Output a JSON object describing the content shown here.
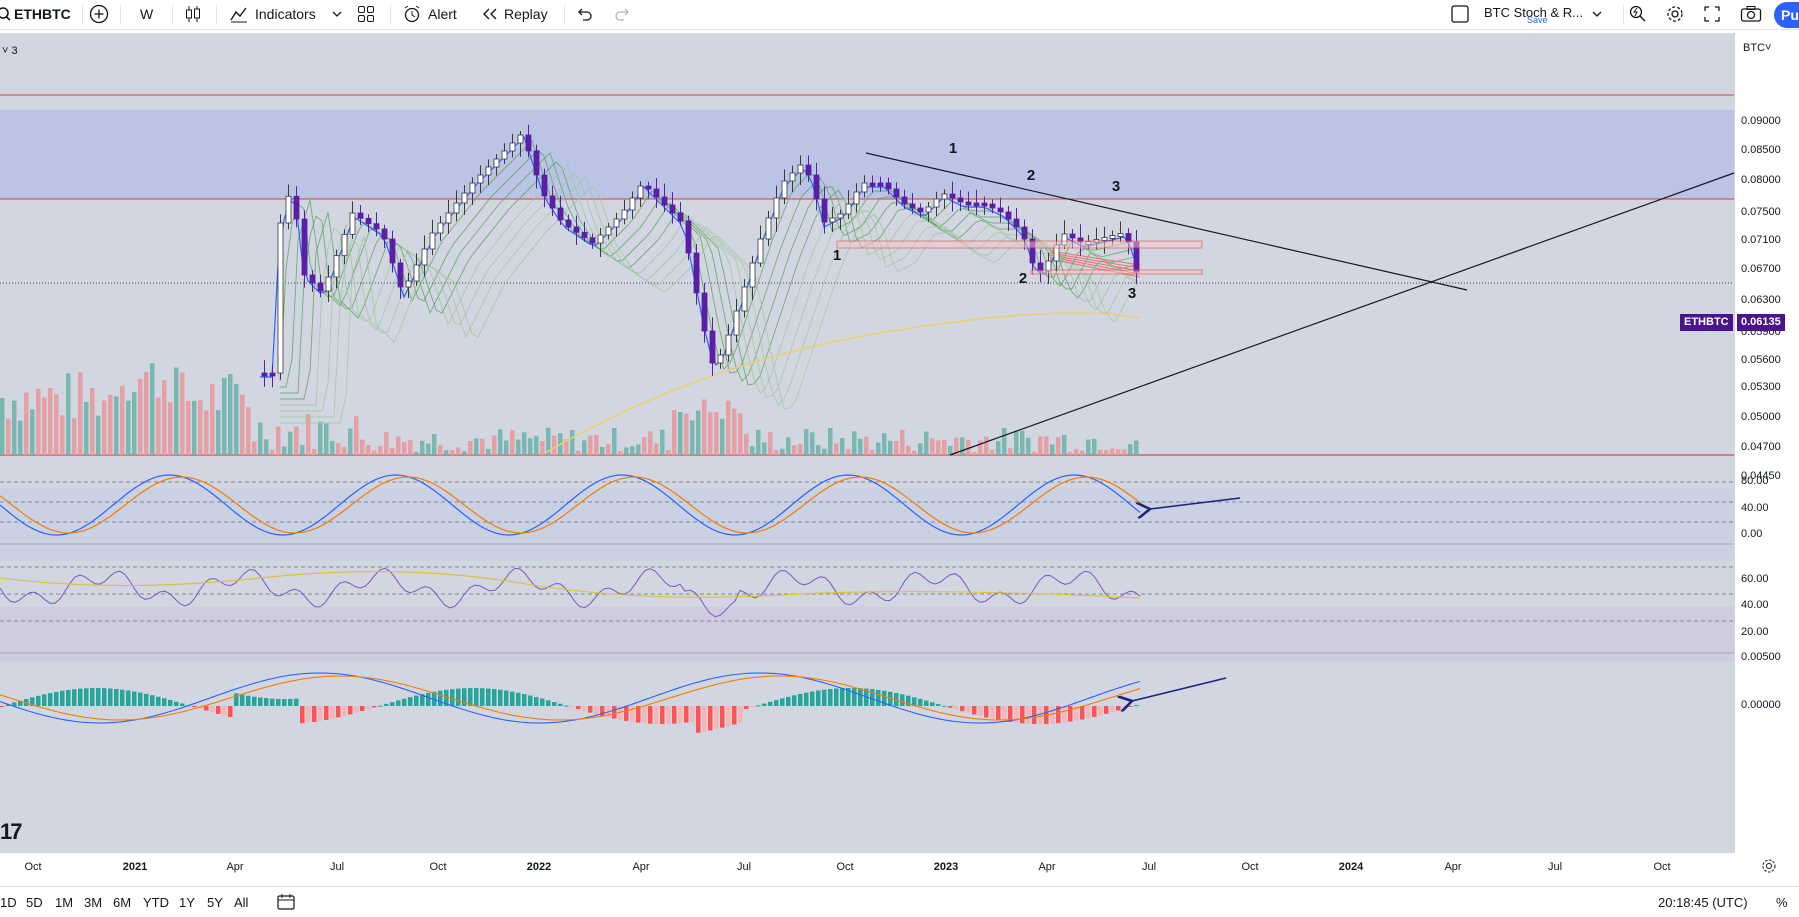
{
  "toolbar": {
    "symbol": "ETHBTC",
    "interval": "W",
    "indicators_label": "Indicators",
    "alert_label": "Alert",
    "replay_label": "Replay",
    "layout_name": "BTC Stoch & R...",
    "save_label": "Save",
    "publish_label": "Pu"
  },
  "chart": {
    "legend_fragment": "3",
    "currency_menu": "BTC",
    "price_ticks": [
      "0.09000",
      "0.08500",
      "0.08000",
      "0.07500",
      "0.07100",
      "0.06700",
      "0.06300",
      "0.05900",
      "0.05600",
      "0.05300",
      "0.05000",
      "0.04700",
      "0.04450"
    ],
    "current_price_symbol": "ETHBTC",
    "current_price": "0.06135",
    "time_ticks": [
      "Oct",
      "2021",
      "Apr",
      "Jul",
      "Oct",
      "2022",
      "Apr",
      "Jul",
      "Oct",
      "2023",
      "Apr",
      "Jul",
      "Oct",
      "2024",
      "Apr",
      "Jul",
      "Oct"
    ],
    "wave_labels": [
      "1",
      "2",
      "3",
      "1",
      "2",
      "3"
    ],
    "stoch_ticks": [
      "80.00",
      "40.00",
      "0.00"
    ],
    "rsi_ticks": [
      "60.00",
      "40.00",
      "20.00"
    ],
    "macd_ticks": [
      "0.00500",
      "0.00000"
    ],
    "watermark": "17",
    "colors": {
      "up": "#ffffff",
      "down": "#5b1ea6",
      "resistance": "#e53935",
      "zone": "#a9b5ec",
      "stoch_k": "#2962ff",
      "stoch_d": "#f57c00",
      "rsi": "#7e57c2",
      "rsi_ma": "#e0c030",
      "macd_pos": "#26a69a",
      "macd_neg": "#ff5252",
      "arrow": "#1a237e"
    }
  },
  "bottombar": {
    "ranges": [
      "1D",
      "5D",
      "1M",
      "3M",
      "6M",
      "YTD",
      "1Y",
      "5Y",
      "All"
    ],
    "clock": "20:18:45 (UTC)",
    "percent": "%"
  }
}
